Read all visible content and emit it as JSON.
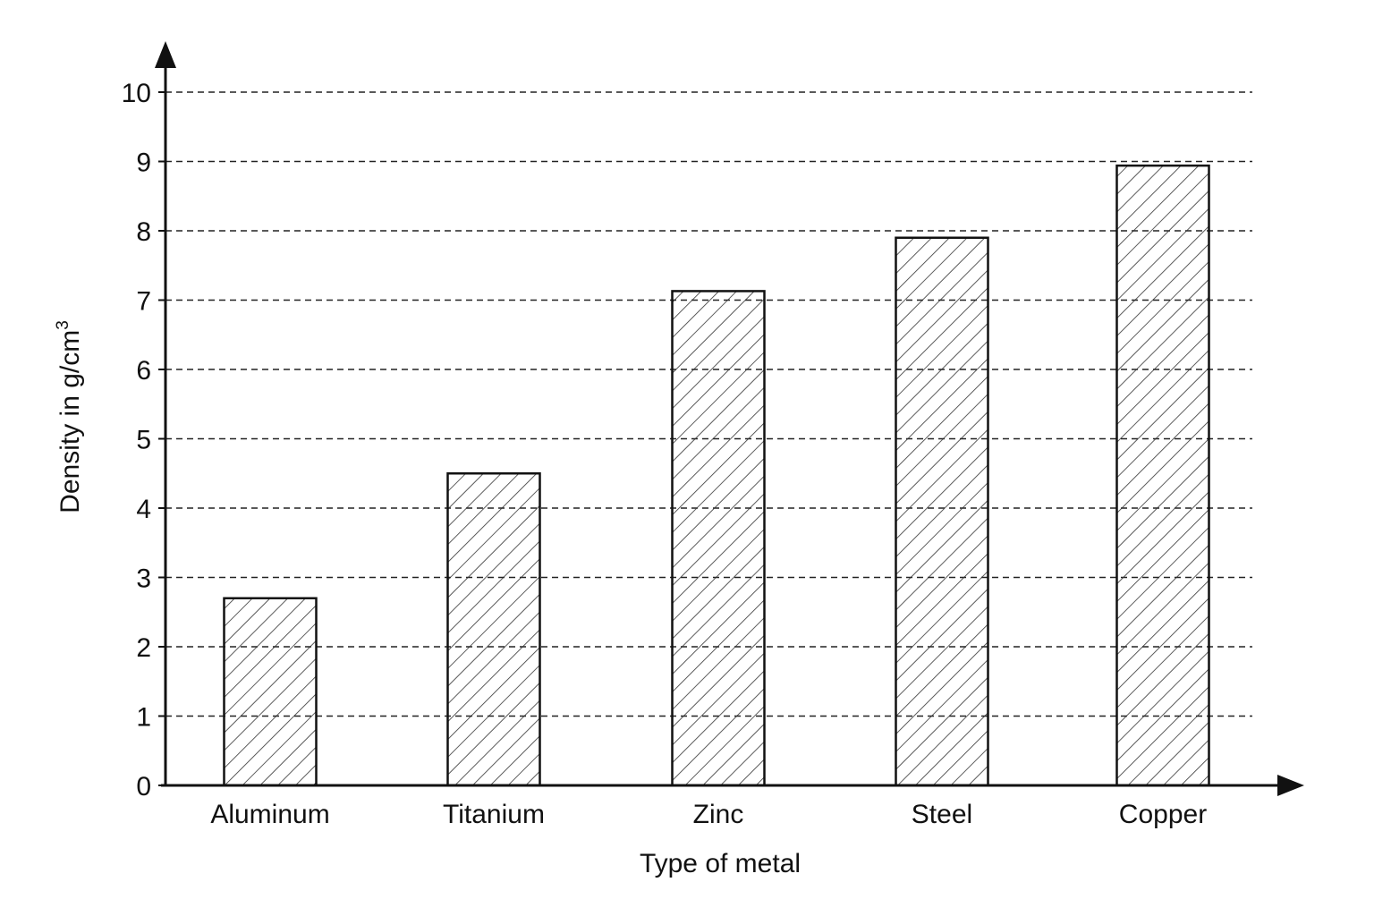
{
  "chart_data": {
    "type": "bar",
    "categories": [
      "Aluminum",
      "Titanium",
      "Zinc",
      "Steel",
      "Copper"
    ],
    "values": [
      2.7,
      4.5,
      7.13,
      7.9,
      8.94
    ],
    "xlabel": "Type of metal",
    "ylabel_main": "Density in g/cm",
    "ylabel_sup": "3",
    "ylim": [
      0,
      10
    ],
    "yticks": [
      0,
      1,
      2,
      3,
      4,
      5,
      6,
      7,
      8,
      9,
      10
    ],
    "grid": "dashed horizontal",
    "bar_fill": "diagonal hatch",
    "colors": {
      "stroke": "#111111",
      "grid": "#222222",
      "hatch": "#333333",
      "background": "#ffffff"
    }
  }
}
